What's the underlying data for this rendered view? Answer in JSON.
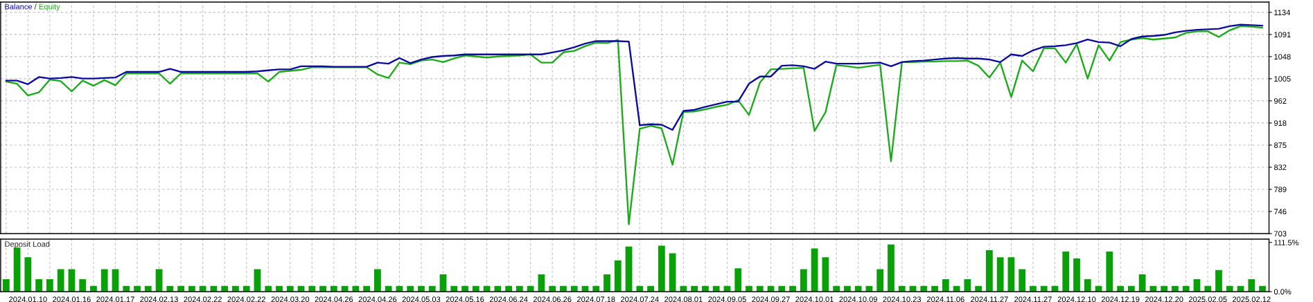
{
  "chart_data": [
    {
      "type": "line",
      "legend": "top left",
      "grid": true,
      "tick_labels": "y",
      "annotations": [
        "/"
      ],
      "ylim": [
        703,
        1154
      ],
      "yticks": [
        {
          "value": 703,
          "label": "703"
        },
        {
          "value": 746.1,
          "label": "746"
        },
        {
          "value": 789.2,
          "label": "789"
        },
        {
          "value": 832.3,
          "label": "832"
        },
        {
          "value": 875.4,
          "label": "875"
        },
        {
          "value": 918.5,
          "label": "918"
        },
        {
          "value": 961.6,
          "label": "962"
        },
        {
          "value": 1004.7,
          "label": "1005"
        },
        {
          "value": 1047.8,
          "label": "1048"
        },
        {
          "value": 1090.9,
          "label": "1091"
        },
        {
          "value": 1134,
          "label": "1134"
        }
      ],
      "categories": [
        null,
        null,
        "2024.01.10",
        null,
        null,
        null,
        "2024.01.16",
        null,
        null,
        null,
        "2024.01.17",
        null,
        null,
        null,
        "2024.02.13",
        null,
        null,
        null,
        "2024.02.22",
        null,
        null,
        null,
        "2024.02.22",
        null,
        null,
        null,
        "2024.03.20",
        null,
        null,
        null,
        "2024.04.26",
        null,
        null,
        null,
        "2024.04.26",
        null,
        null,
        null,
        "2024.05.03",
        null,
        null,
        null,
        "2024.05.16",
        null,
        null,
        null,
        "2024.06.24",
        null,
        null,
        null,
        "2024.06.26",
        null,
        null,
        null,
        "2024.07.18",
        null,
        null,
        null,
        "2024.07.24",
        null,
        null,
        null,
        "2024.08.01",
        null,
        null,
        null,
        "2024.09.05",
        null,
        null,
        null,
        "2024.09.27",
        null,
        null,
        null,
        "2024.10.01",
        null,
        null,
        null,
        "2024.10.09",
        null,
        null,
        null,
        "2024.10.23",
        null,
        null,
        null,
        "2024.11.06",
        null,
        null,
        null,
        "2024.11.27",
        null,
        null,
        null,
        "2024.11.27",
        null,
        null,
        null,
        "2024.12.10",
        null,
        null,
        null,
        "2024.12.19",
        null,
        null,
        null,
        "2024.12.20",
        null,
        null,
        null,
        "2025.02.05",
        null,
        null,
        null,
        "2025.02.12",
        null
      ],
      "series": [
        {
          "name": "Equity",
          "color": "#1aaa1a",
          "values": [
            999,
            995,
            972,
            978,
            1003,
            1000,
            980,
            1001,
            991,
            1002,
            992,
            1015,
            1015,
            1015,
            1015,
            995,
            1015,
            1015,
            1015,
            1015,
            1015,
            1015,
            1015,
            1015,
            999,
            1018,
            1020,
            1022,
            1027,
            1027,
            1027,
            1027,
            1027,
            1027,
            1013,
            1006,
            1036,
            1033,
            1040,
            1042,
            1037,
            1044,
            1050,
            1048,
            1046,
            1048,
            1049,
            1050,
            1052,
            1036,
            1036,
            1056,
            1059,
            1068,
            1075,
            1074,
            1080,
            721,
            907,
            913,
            908,
            837,
            940,
            941,
            945,
            950,
            954,
            963,
            934,
            997,
            1023,
            1024,
            1025,
            1026,
            903,
            939,
            1031,
            1029,
            1026,
            1029,
            1032,
            844,
            1037,
            1037,
            1038,
            1038,
            1039,
            1039,
            1040,
            1030,
            1007,
            1036,
            969,
            1040,
            1019,
            1064,
            1064,
            1036,
            1072,
            1005,
            1070,
            1040,
            1076,
            1081,
            1084,
            1081,
            1083,
            1085,
            1094,
            1097,
            1097,
            1086,
            1099,
            1107,
            1106,
            1104
          ]
        },
        {
          "name": "Balance",
          "color": "#0a0aa0",
          "values": [
            1001,
            1001,
            994,
            1008,
            1005,
            1006,
            1008,
            1005,
            1005,
            1006,
            1007,
            1018,
            1018,
            1018,
            1018,
            1024,
            1018,
            1018,
            1018,
            1018,
            1018,
            1018,
            1018,
            1019,
            1021,
            1023,
            1023,
            1029,
            1029,
            1029,
            1028,
            1028,
            1028,
            1028,
            1036,
            1034,
            1045,
            1035,
            1042,
            1047,
            1049,
            1050,
            1052,
            1052,
            1052,
            1052,
            1052,
            1052,
            1052,
            1052,
            1056,
            1060,
            1066,
            1073,
            1078,
            1078,
            1078,
            1077,
            914,
            916,
            915,
            905,
            942,
            944,
            950,
            955,
            960,
            960,
            995,
            1009,
            1009,
            1030,
            1031,
            1029,
            1024,
            1038,
            1034,
            1034,
            1034,
            1035,
            1036,
            1029,
            1037,
            1039,
            1040,
            1042,
            1044,
            1045,
            1044,
            1044,
            1042,
            1037,
            1052,
            1049,
            1060,
            1067,
            1068,
            1070,
            1074,
            1081,
            1076,
            1075,
            1068,
            1082,
            1087,
            1088,
            1090,
            1095,
            1098,
            1100,
            1101,
            1102,
            1107,
            1110,
            1109,
            1108
          ]
        }
      ]
    },
    {
      "type": "bar",
      "title": "Deposit Load",
      "color": "#0aa00a",
      "grid": "x",
      "ylim": [
        0,
        119
      ],
      "yticks": [
        {
          "value": 0,
          "label": "0.0%"
        },
        {
          "value": 111.5,
          "label": "111.5%"
        }
      ],
      "categories": [
        null,
        null,
        "2024.01.10",
        null,
        null,
        null,
        "2024.01.16",
        null,
        null,
        null,
        "2024.01.17",
        null,
        null,
        null,
        "2024.02.13",
        null,
        null,
        null,
        "2024.02.22",
        null,
        null,
        null,
        "2024.02.22",
        null,
        null,
        null,
        "2024.03.20",
        null,
        null,
        null,
        "2024.04.26",
        null,
        null,
        null,
        "2024.04.26",
        null,
        null,
        null,
        "2024.05.03",
        null,
        null,
        null,
        "2024.05.16",
        null,
        null,
        null,
        "2024.06.24",
        null,
        null,
        null,
        "2024.06.26",
        null,
        null,
        null,
        "2024.07.18",
        null,
        null,
        null,
        "2024.07.24",
        null,
        null,
        null,
        "2024.08.01",
        null,
        null,
        null,
        "2024.09.05",
        null,
        null,
        null,
        "2024.09.27",
        null,
        null,
        null,
        "2024.10.01",
        null,
        null,
        null,
        "2024.10.09",
        null,
        null,
        null,
        "2024.10.23",
        null,
        null,
        null,
        "2024.11.06",
        null,
        null,
        null,
        "2024.11.27",
        null,
        null,
        null,
        "2024.11.27",
        null,
        null,
        null,
        "2024.12.10",
        null,
        null,
        null,
        "2024.12.19",
        null,
        null,
        null,
        "2024.12.20",
        null,
        null,
        null,
        "2025.02.05",
        null,
        null,
        null,
        "2025.02.12",
        null
      ],
      "values": [
        28,
        100,
        78,
        28,
        28,
        51,
        51,
        28,
        13,
        51,
        51,
        13,
        13,
        13,
        51,
        13,
        13,
        13,
        13,
        13,
        13,
        13,
        13,
        51,
        13,
        13,
        13,
        13,
        13,
        13,
        13,
        13,
        13,
        13,
        51,
        13,
        13,
        13,
        13,
        13,
        39,
        13,
        13,
        13,
        13,
        13,
        13,
        13,
        13,
        39,
        13,
        13,
        13,
        13,
        13,
        39,
        71,
        102,
        13,
        13,
        104,
        87,
        13,
        13,
        13,
        13,
        13,
        53,
        13,
        13,
        13,
        13,
        13,
        51,
        98,
        78,
        13,
        13,
        13,
        13,
        51,
        107,
        13,
        13,
        13,
        13,
        28,
        13,
        28,
        13,
        94,
        78,
        78,
        51,
        13,
        13,
        13,
        91,
        75,
        28,
        13,
        91,
        13,
        13,
        39,
        13,
        13,
        13,
        13,
        28,
        13,
        49,
        13,
        13,
        28,
        13
      ]
    }
  ]
}
